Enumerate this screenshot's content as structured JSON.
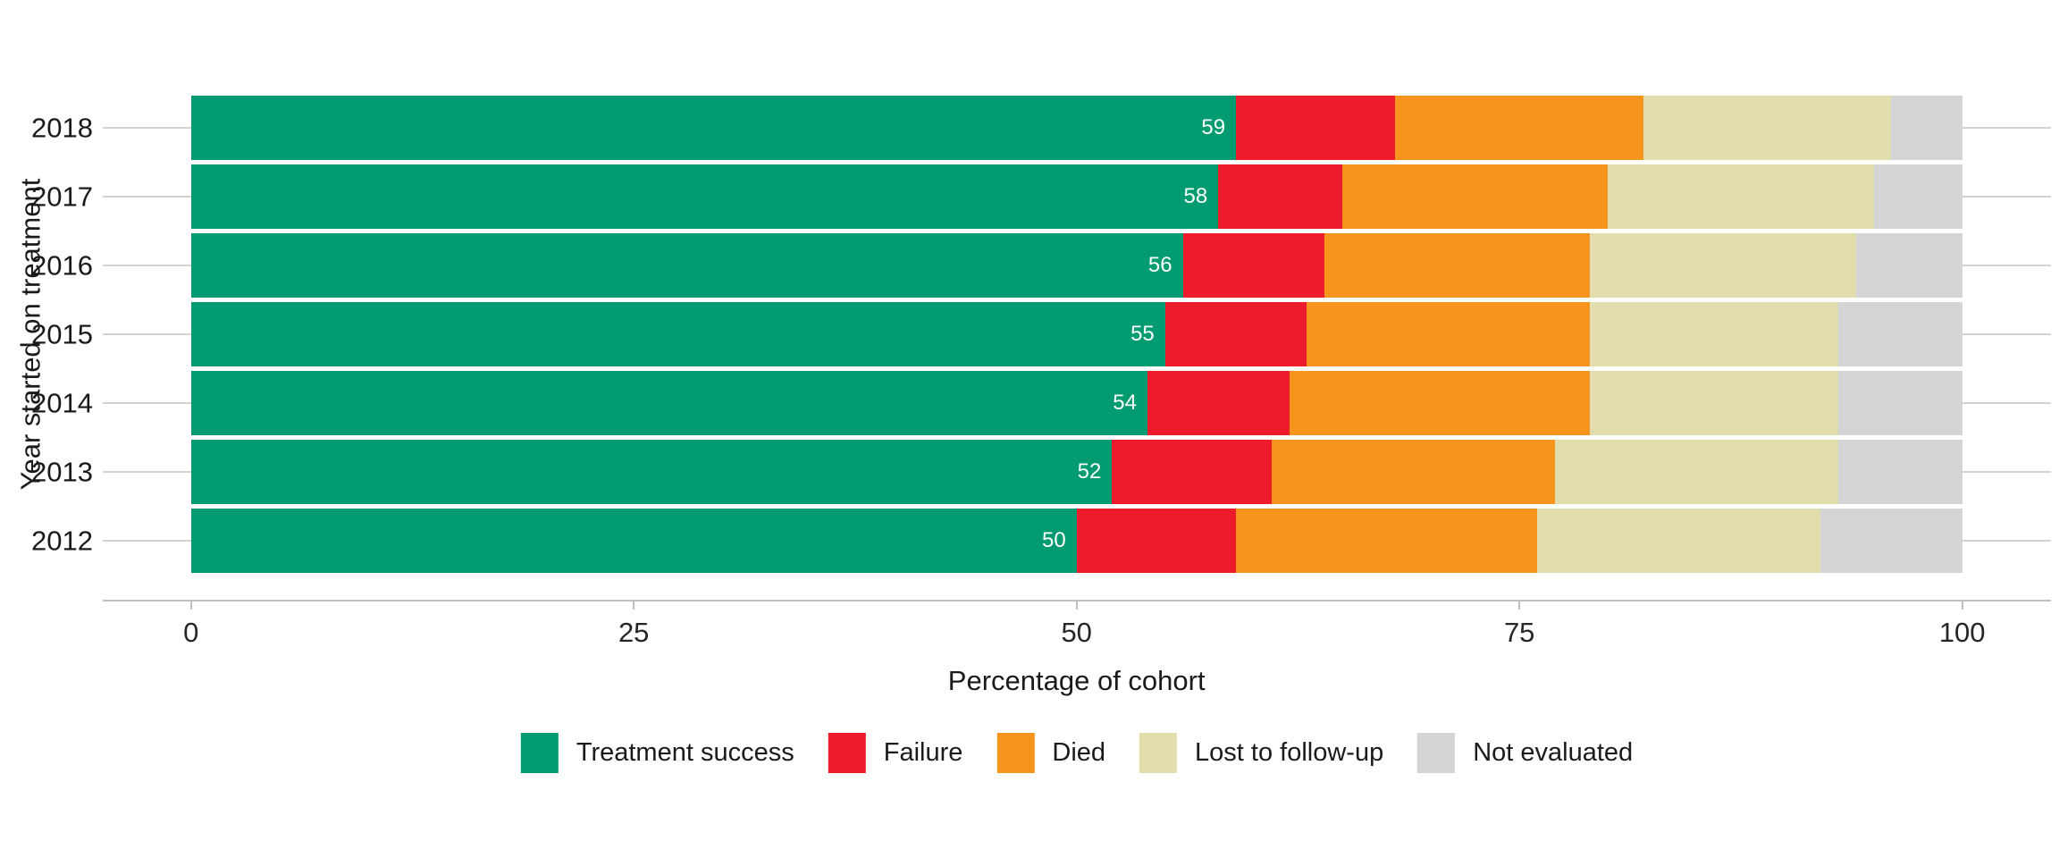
{
  "chart_data": {
    "type": "bar",
    "variant": "horizontal-stacked",
    "title": "",
    "xlabel": "Percentage of cohort",
    "ylabel": "Year started on treatment",
    "xlim": [
      0,
      100
    ],
    "xticks": [
      "0",
      "25",
      "50",
      "75",
      "100"
    ],
    "grid": "horizontal category gridlines, light gray, drawn behind bars",
    "legend_position": "bottom-center",
    "categories": [
      "2018",
      "2017",
      "2016",
      "2015",
      "2014",
      "2013",
      "2012"
    ],
    "series": [
      {
        "name": "Treatment success",
        "color": "#009B70",
        "values": [
          59,
          58,
          56,
          55,
          54,
          52,
          50
        ]
      },
      {
        "name": "Failure",
        "color": "#ED1B2C",
        "values": [
          9,
          7,
          8,
          8,
          8,
          9,
          9
        ]
      },
      {
        "name": "Died",
        "color": "#F7941E",
        "values": [
          14,
          15,
          15,
          16,
          17,
          16,
          17
        ]
      },
      {
        "name": "Lost to follow-up",
        "color": "#E2DDAC",
        "values": [
          14,
          15,
          15,
          14,
          14,
          16,
          16
        ]
      },
      {
        "name": "Not evaluated",
        "color": "#D2D4D5",
        "values": [
          4,
          5,
          6,
          7,
          7,
          7,
          8
        ]
      }
    ],
    "bar_value_labels": {
      "series": "Treatment success",
      "values": [
        "59",
        "58",
        "56",
        "55",
        "54",
        "52",
        "50"
      ],
      "style": "white text, right-aligned inside green segment"
    }
  },
  "legend": {
    "items": [
      {
        "label": "Treatment success",
        "color": "#009B70"
      },
      {
        "label": "Failure",
        "color": "#ED1B2C"
      },
      {
        "label": "Died",
        "color": "#F7941E"
      },
      {
        "label": "Lost to follow-up",
        "color": "#E2DDAC"
      },
      {
        "label": "Not evaluated",
        "color": "#D2D4D5"
      }
    ]
  },
  "colors": {
    "background": "#FFFFFF",
    "gridline": "#D2D2D2",
    "axis_line": "#BEBEBE",
    "text": "#1A1A1A",
    "bar_label_text": "#FFFFFF"
  }
}
